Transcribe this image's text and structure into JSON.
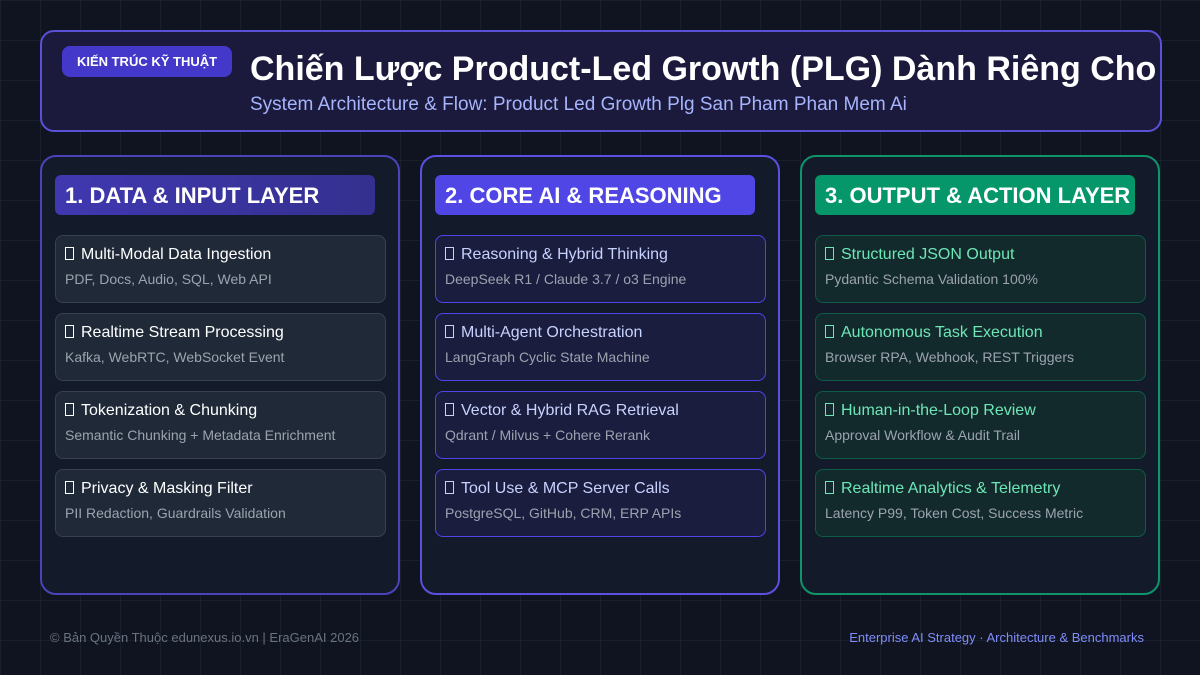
{
  "header": {
    "badge": "KIẾN TRÚC KỸ THUẬT",
    "title": "Chiến Lược Product-Led Growth (PLG) Dành Riêng Cho",
    "subtitle": "System Architecture & Flow: Product Led Growth Plg San Pham Phan Mem Ai"
  },
  "columns": [
    {
      "title": "1. DATA & INPUT LAYER",
      "items": [
        {
          "title": "Multi-Modal Data Ingestion",
          "desc": "PDF, Docs, Audio, SQL, Web API"
        },
        {
          "title": "Realtime Stream Processing",
          "desc": "Kafka, WebRTC, WebSocket Event"
        },
        {
          "title": "Tokenization & Chunking",
          "desc": "Semantic Chunking + Metadata Enrichment"
        },
        {
          "title": "Privacy & Masking Filter",
          "desc": "PII Redaction, Guardrails Validation"
        }
      ]
    },
    {
      "title": "2. CORE AI & REASONING",
      "items": [
        {
          "title": "Reasoning & Hybrid Thinking",
          "desc": "DeepSeek R1 / Claude 3.7 / o3 Engine"
        },
        {
          "title": "Multi-Agent Orchestration",
          "desc": "LangGraph Cyclic State Machine"
        },
        {
          "title": "Vector & Hybrid RAG Retrieval",
          "desc": "Qdrant / Milvus + Cohere Rerank"
        },
        {
          "title": "Tool Use & MCP Server Calls",
          "desc": "PostgreSQL, GitHub, CRM, ERP APIs"
        }
      ]
    },
    {
      "title": "3. OUTPUT & ACTION LAYER",
      "items": [
        {
          "title": "Structured JSON Output",
          "desc": "Pydantic Schema Validation 100%"
        },
        {
          "title": "Autonomous Task Execution",
          "desc": "Browser RPA, Webhook, REST Triggers"
        },
        {
          "title": "Human-in-the-Loop Review",
          "desc": "Approval Workflow & Audit Trail"
        },
        {
          "title": "Realtime Analytics & Telemetry",
          "desc": "Latency P99, Token Cost, Success Metric"
        }
      ]
    }
  ],
  "footer": {
    "left": "© Bản Quyền Thuộc edunexus.io.vn | EraGenAI 2026",
    "right": "Enterprise AI Strategy · Architecture & Benchmarks"
  }
}
